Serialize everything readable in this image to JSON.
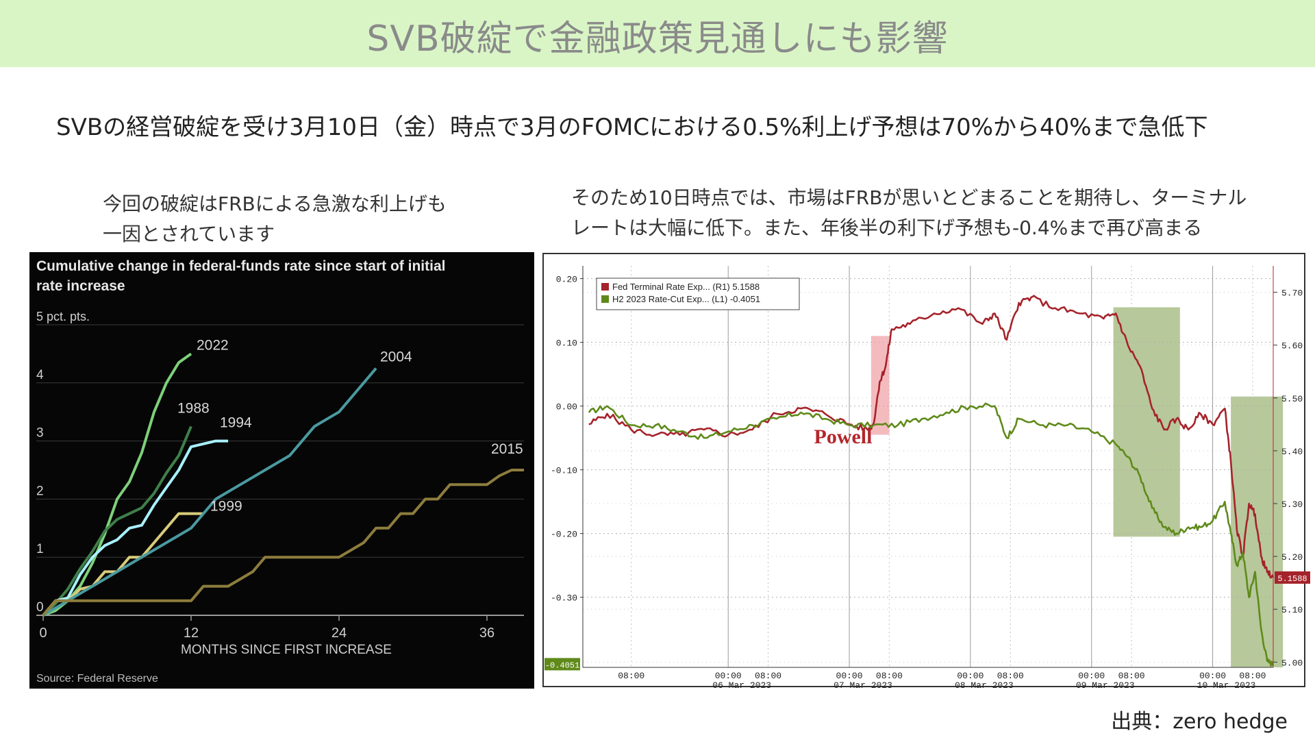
{
  "banner": {
    "title": "SVB破綻で金融政策見通しにも影響"
  },
  "headline": "SVBの経営破綻を受け3月10日（金）時点で3月のFOMCにおける0.5%利上げ予想は70%から40%まで急低下",
  "left_caption": {
    "line1": "今回の破綻はFRBによる急激な利上げも",
    "line2": "一因とされています"
  },
  "right_caption": {
    "line1": "そのため10日時点では、市場はFRBが思いとどまることを期待し、ターミナル",
    "line2": "レートは大幅に低下。また、年後半の利下げ予想も-0.4%まで再び高まる"
  },
  "source": "出典：zero hedge",
  "colors": {
    "banner": "#d9f5c6",
    "s2022": "#7ed07a",
    "s1988": "#3f7f4a",
    "s1994": "#a8f0ff",
    "s2004": "#4a9aa0",
    "s1999": "#d8cc7a",
    "s2015": "#8d7d3d",
    "fed_terminal": "#a5232a",
    "h2_cut": "#5f8a1a",
    "highlight_red": "#f0a4aa",
    "highlight_green": "#9fb57a"
  },
  "chart_data": [
    {
      "type": "line",
      "title": "Cumulative change in federal-funds rate since start of initial",
      "title_line2": "rate increase",
      "ylabel": "5 pct. pts.",
      "xlabel": "MONTHS SINCE FIRST INCREASE",
      "source": "Source: Federal Reserve",
      "xlim": [
        0,
        39
      ],
      "ylim": [
        0,
        5
      ],
      "x_ticks": [
        0,
        12,
        24,
        36
      ],
      "y_ticks": [
        0,
        1,
        2,
        3,
        4
      ],
      "grid": true,
      "series": [
        {
          "name": "2022",
          "color_key": "s2022",
          "points": [
            [
              0,
              0
            ],
            [
              1,
              0.08
            ],
            [
              2,
              0.25
            ],
            [
              3,
              0.5
            ],
            [
              4,
              0.9
            ],
            [
              5,
              1.4
            ],
            [
              6,
              2.0
            ],
            [
              7,
              2.3
            ],
            [
              8,
              2.8
            ],
            [
              9,
              3.5
            ],
            [
              10,
              4.0
            ],
            [
              11,
              4.35
            ],
            [
              12,
              4.5
            ]
          ]
        },
        {
          "name": "1988",
          "color_key": "s1988",
          "points": [
            [
              0,
              0
            ],
            [
              1,
              0.2
            ],
            [
              2,
              0.45
            ],
            [
              3,
              0.8
            ],
            [
              4,
              1.1
            ],
            [
              5,
              1.45
            ],
            [
              6,
              1.65
            ],
            [
              7,
              1.75
            ],
            [
              8,
              1.85
            ],
            [
              9,
              2.1
            ],
            [
              10,
              2.45
            ],
            [
              11,
              2.75
            ],
            [
              12,
              3.25
            ]
          ]
        },
        {
          "name": "1994",
          "color_key": "s1994",
          "points": [
            [
              0,
              0
            ],
            [
              1,
              0.25
            ],
            [
              2,
              0.3
            ],
            [
              3,
              0.7
            ],
            [
              4,
              1.0
            ],
            [
              5,
              1.2
            ],
            [
              6,
              1.3
            ],
            [
              7,
              1.5
            ],
            [
              8,
              1.55
            ],
            [
              9,
              1.9
            ],
            [
              10,
              2.2
            ],
            [
              11,
              2.5
            ],
            [
              12,
              2.9
            ],
            [
              13,
              2.95
            ],
            [
              14,
              3.0
            ],
            [
              15,
              3.0
            ]
          ]
        },
        {
          "name": "1999",
          "color_key": "s1999",
          "points": [
            [
              0,
              0
            ],
            [
              1,
              0.25
            ],
            [
              2,
              0.25
            ],
            [
              3,
              0.45
            ],
            [
              4,
              0.5
            ],
            [
              5,
              0.75
            ],
            [
              6,
              0.75
            ],
            [
              7,
              1.0
            ],
            [
              8,
              1.0
            ],
            [
              9,
              1.25
            ],
            [
              10,
              1.5
            ],
            [
              11,
              1.75
            ],
            [
              12,
              1.75
            ],
            [
              13,
              1.75
            ]
          ]
        },
        {
          "name": "2004",
          "color_key": "s2004",
          "points": [
            [
              0,
              0
            ],
            [
              2,
              0.25
            ],
            [
              4,
              0.5
            ],
            [
              6,
              0.75
            ],
            [
              8,
              1.0
            ],
            [
              10,
              1.25
            ],
            [
              12,
              1.5
            ],
            [
              14,
              2.0
            ],
            [
              16,
              2.25
            ],
            [
              18,
              2.5
            ],
            [
              20,
              2.75
            ],
            [
              22,
              3.25
            ],
            [
              24,
              3.5
            ],
            [
              25,
              3.75
            ],
            [
              26,
              4.0
            ],
            [
              27,
              4.25
            ]
          ]
        },
        {
          "name": "2015",
          "color_key": "s2015",
          "points": [
            [
              0,
              0
            ],
            [
              1,
              0.25
            ],
            [
              12,
              0.25
            ],
            [
              13,
              0.5
            ],
            [
              15,
              0.5
            ],
            [
              17,
              0.75
            ],
            [
              18,
              1.0
            ],
            [
              20,
              1.0
            ],
            [
              24,
              1.0
            ],
            [
              26,
              1.25
            ],
            [
              27,
              1.5
            ],
            [
              28,
              1.5
            ],
            [
              29,
              1.75
            ],
            [
              30,
              1.75
            ],
            [
              31,
              2.0
            ],
            [
              32,
              2.0
            ],
            [
              33,
              2.25
            ],
            [
              34,
              2.25
            ],
            [
              35,
              2.25
            ],
            [
              36,
              2.25
            ],
            [
              37,
              2.4
            ],
            [
              38,
              2.5
            ],
            [
              39,
              2.5
            ]
          ]
        }
      ]
    },
    {
      "type": "line",
      "legend_placement": "top-left",
      "left_axis": {
        "ylim": [
          -0.41,
          0.22
        ],
        "ticks": [
          "0.20",
          "0.10",
          "0.00",
          "-0.10",
          "-0.20",
          "-0.30"
        ],
        "tick_values": [
          0.2,
          0.1,
          0.0,
          -0.1,
          -0.2,
          -0.3
        ]
      },
      "right_axis": {
        "ylim": [
          4.99,
          5.75
        ],
        "ticks": [
          "5.70",
          "5.60",
          "5.50",
          "5.40",
          "5.30",
          "5.20",
          "5.10",
          "5.00"
        ],
        "tick_values": [
          5.7,
          5.6,
          5.5,
          5.4,
          5.3,
          5.2,
          5.1,
          5.0
        ]
      },
      "x_ticks": [
        "08:00",
        "00:00",
        "08:00",
        "00:00",
        "08:00",
        "00:00",
        "08:00",
        "00:00",
        "08:00",
        "00:00",
        "08:00"
      ],
      "x_tick_pos": [
        0.2,
        1.0,
        1.33,
        2.0,
        2.33,
        3.0,
        3.33,
        4.0,
        4.33,
        5.0,
        5.33
      ],
      "date_labels": [
        "06 Mar 2023",
        "07 Mar 2023",
        "08 Mar 2023",
        "09 Mar 2023",
        "10 Mar 2023"
      ],
      "date_pos": [
        1.0,
        2.0,
        3.0,
        4.0,
        5.0
      ],
      "xlim": [
        -0.2,
        5.5
      ],
      "annotation": "Powell",
      "series": [
        {
          "name": "Fed Terminal Rate Exp... (R1) 5.1588",
          "axis": "right",
          "color_key": "fed_terminal",
          "last_value": "5.1588",
          "points": [
            [
              -0.15,
              5.45
            ],
            [
              0,
              5.47
            ],
            [
              0.2,
              5.44
            ],
            [
              0.4,
              5.43
            ],
            [
              0.6,
              5.43
            ],
            [
              0.8,
              5.44
            ],
            [
              1.0,
              5.43
            ],
            [
              1.2,
              5.44
            ],
            [
              1.4,
              5.47
            ],
            [
              1.6,
              5.48
            ],
            [
              1.8,
              5.47
            ],
            [
              2.0,
              5.45
            ],
            [
              2.15,
              5.44
            ],
            [
              2.2,
              5.45
            ],
            [
              2.25,
              5.53
            ],
            [
              2.3,
              5.56
            ],
            [
              2.35,
              5.63
            ],
            [
              2.5,
              5.64
            ],
            [
              2.7,
              5.66
            ],
            [
              2.9,
              5.67
            ],
            [
              3.1,
              5.64
            ],
            [
              3.2,
              5.66
            ],
            [
              3.3,
              5.61
            ],
            [
              3.4,
              5.68
            ],
            [
              3.5,
              5.69
            ],
            [
              3.7,
              5.67
            ],
            [
              3.9,
              5.66
            ],
            [
              4.1,
              5.65
            ],
            [
              4.2,
              5.66
            ],
            [
              4.3,
              5.6
            ],
            [
              4.4,
              5.56
            ],
            [
              4.5,
              5.48
            ],
            [
              4.6,
              5.44
            ],
            [
              4.7,
              5.46
            ],
            [
              4.8,
              5.44
            ],
            [
              4.9,
              5.47
            ],
            [
              5.0,
              5.45
            ],
            [
              5.1,
              5.48
            ],
            [
              5.15,
              5.38
            ],
            [
              5.2,
              5.25
            ],
            [
              5.25,
              5.2
            ],
            [
              5.3,
              5.3
            ],
            [
              5.35,
              5.28
            ],
            [
              5.4,
              5.2
            ],
            [
              5.45,
              5.17
            ],
            [
              5.5,
              5.16
            ]
          ]
        },
        {
          "name": "H2 2023 Rate-Cut Exp... (L1) -0.4051",
          "axis": "left",
          "color_key": "h2_cut",
          "last_value": "-0.4051",
          "points": [
            [
              -0.15,
              -0.01
            ],
            [
              0,
              0.0
            ],
            [
              0.2,
              -0.03
            ],
            [
              0.4,
              -0.03
            ],
            [
              0.6,
              -0.04
            ],
            [
              0.8,
              -0.05
            ],
            [
              1.0,
              -0.04
            ],
            [
              1.2,
              -0.03
            ],
            [
              1.4,
              -0.02
            ],
            [
              1.6,
              -0.01
            ],
            [
              1.8,
              -0.02
            ],
            [
              2.0,
              -0.03
            ],
            [
              2.2,
              -0.03
            ],
            [
              2.4,
              -0.03
            ],
            [
              2.6,
              -0.02
            ],
            [
              2.8,
              -0.01
            ],
            [
              3.0,
              0.0
            ],
            [
              3.2,
              0.0
            ],
            [
              3.3,
              -0.05
            ],
            [
              3.4,
              -0.02
            ],
            [
              3.6,
              -0.03
            ],
            [
              3.8,
              -0.03
            ],
            [
              4.0,
              -0.04
            ],
            [
              4.2,
              -0.06
            ],
            [
              4.3,
              -0.08
            ],
            [
              4.4,
              -0.11
            ],
            [
              4.5,
              -0.16
            ],
            [
              4.6,
              -0.19
            ],
            [
              4.7,
              -0.2
            ],
            [
              4.8,
              -0.19
            ],
            [
              4.9,
              -0.19
            ],
            [
              5.0,
              -0.18
            ],
            [
              5.1,
              -0.15
            ],
            [
              5.15,
              -0.2
            ],
            [
              5.2,
              -0.25
            ],
            [
              5.25,
              -0.23
            ],
            [
              5.3,
              -0.3
            ],
            [
              5.35,
              -0.26
            ],
            [
              5.4,
              -0.35
            ],
            [
              5.45,
              -0.4
            ],
            [
              5.5,
              -0.405
            ]
          ]
        }
      ],
      "highlights": [
        {
          "color_key": "highlight_red",
          "x": [
            2.18,
            2.33
          ],
          "y_left": [
            -0.045,
            0.11
          ]
        },
        {
          "color_key": "highlight_green",
          "x": [
            4.18,
            4.73
          ],
          "y_left": [
            -0.205,
            0.155
          ]
        },
        {
          "color_key": "highlight_green",
          "x": [
            5.15,
            5.58
          ],
          "y_left": [
            -0.41,
            0.015
          ]
        }
      ]
    }
  ]
}
